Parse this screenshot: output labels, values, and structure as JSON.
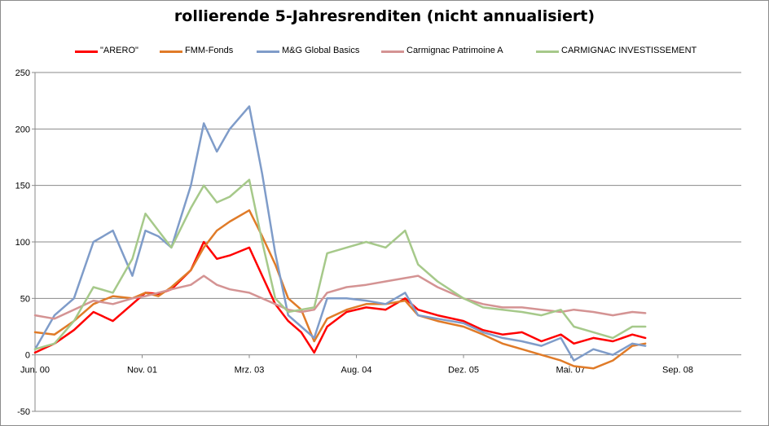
{
  "chart_data": {
    "type": "line",
    "title": "rollierende 5-Jahresrenditen (nicht annualisiert)",
    "xlabel": "",
    "ylabel": "",
    "ylim": [
      -50,
      250
    ],
    "yticks": [
      "-50",
      "0",
      "50",
      "100",
      "150",
      "200",
      "250"
    ],
    "xticks": [
      "Jun. 00",
      "Nov. 01",
      "Mrz. 03",
      "Aug. 04",
      "Dez. 05",
      "Mai. 07",
      "Sep. 08"
    ],
    "grid": "horizontal",
    "legend_position": "top",
    "series": [
      {
        "name": "\"ARERO\"",
        "color": "#ff0000",
        "points": [
          [
            "2000-06",
            2
          ],
          [
            "2000-09",
            10
          ],
          [
            "2000-12",
            22
          ],
          [
            "2001-03",
            38
          ],
          [
            "2001-06",
            30
          ],
          [
            "2001-09",
            45
          ],
          [
            "2001-11",
            55
          ],
          [
            "2002-01",
            54
          ],
          [
            "2002-03",
            58
          ],
          [
            "2002-06",
            75
          ],
          [
            "2002-08",
            100
          ],
          [
            "2002-10",
            85
          ],
          [
            "2002-12",
            88
          ],
          [
            "2003-03",
            95
          ],
          [
            "2003-05",
            70
          ],
          [
            "2003-07",
            45
          ],
          [
            "2003-09",
            30
          ],
          [
            "2003-11",
            20
          ],
          [
            "2004-01",
            2
          ],
          [
            "2004-03",
            25
          ],
          [
            "2004-06",
            38
          ],
          [
            "2004-09",
            42
          ],
          [
            "2004-12",
            40
          ],
          [
            "2005-03",
            50
          ],
          [
            "2005-05",
            40
          ],
          [
            "2005-08",
            35
          ],
          [
            "2005-12",
            30
          ],
          [
            "2006-03",
            22
          ],
          [
            "2006-06",
            18
          ],
          [
            "2006-09",
            20
          ],
          [
            "2006-12",
            12
          ],
          [
            "2007-03",
            18
          ],
          [
            "2007-05",
            10
          ],
          [
            "2007-08",
            15
          ],
          [
            "2007-11",
            12
          ],
          [
            "2008-02",
            18
          ],
          [
            "2008-04",
            15
          ]
        ]
      },
      {
        "name": "FMM-Fonds",
        "color": "#e07b28",
        "points": [
          [
            "2000-06",
            20
          ],
          [
            "2000-09",
            18
          ],
          [
            "2000-12",
            30
          ],
          [
            "2001-03",
            45
          ],
          [
            "2001-06",
            52
          ],
          [
            "2001-09",
            50
          ],
          [
            "2001-11",
            55
          ],
          [
            "2002-01",
            52
          ],
          [
            "2002-03",
            60
          ],
          [
            "2002-06",
            75
          ],
          [
            "2002-08",
            95
          ],
          [
            "2002-10",
            110
          ],
          [
            "2002-12",
            118
          ],
          [
            "2003-03",
            128
          ],
          [
            "2003-05",
            105
          ],
          [
            "2003-07",
            80
          ],
          [
            "2003-09",
            50
          ],
          [
            "2003-11",
            40
          ],
          [
            "2004-01",
            12
          ],
          [
            "2004-03",
            32
          ],
          [
            "2004-06",
            40
          ],
          [
            "2004-09",
            45
          ],
          [
            "2004-12",
            45
          ],
          [
            "2005-03",
            48
          ],
          [
            "2005-05",
            35
          ],
          [
            "2005-08",
            30
          ],
          [
            "2005-12",
            25
          ],
          [
            "2006-03",
            18
          ],
          [
            "2006-06",
            10
          ],
          [
            "2006-09",
            5
          ],
          [
            "2006-12",
            0
          ],
          [
            "2007-03",
            -5
          ],
          [
            "2007-05",
            -10
          ],
          [
            "2007-08",
            -12
          ],
          [
            "2007-11",
            -5
          ],
          [
            "2008-02",
            8
          ],
          [
            "2008-04",
            10
          ]
        ]
      },
      {
        "name": "M&G Global Basics",
        "color": "#7f9cc9",
        "points": [
          [
            "2000-06",
            5
          ],
          [
            "2000-09",
            35
          ],
          [
            "2000-12",
            50
          ],
          [
            "2001-03",
            100
          ],
          [
            "2001-06",
            110
          ],
          [
            "2001-09",
            70
          ],
          [
            "2001-11",
            110
          ],
          [
            "2002-01",
            105
          ],
          [
            "2002-03",
            95
          ],
          [
            "2002-06",
            150
          ],
          [
            "2002-08",
            205
          ],
          [
            "2002-10",
            180
          ],
          [
            "2002-12",
            200
          ],
          [
            "2003-03",
            220
          ],
          [
            "2003-05",
            160
          ],
          [
            "2003-07",
            90
          ],
          [
            "2003-09",
            35
          ],
          [
            "2003-11",
            25
          ],
          [
            "2004-01",
            15
          ],
          [
            "2004-03",
            50
          ],
          [
            "2004-06",
            50
          ],
          [
            "2004-09",
            48
          ],
          [
            "2004-12",
            45
          ],
          [
            "2005-03",
            55
          ],
          [
            "2005-05",
            35
          ],
          [
            "2005-08",
            32
          ],
          [
            "2005-12",
            28
          ],
          [
            "2006-03",
            20
          ],
          [
            "2006-06",
            15
          ],
          [
            "2006-09",
            12
          ],
          [
            "2006-12",
            8
          ],
          [
            "2007-03",
            15
          ],
          [
            "2007-05",
            -5
          ],
          [
            "2007-08",
            5
          ],
          [
            "2007-11",
            0
          ],
          [
            "2008-02",
            10
          ],
          [
            "2008-04",
            8
          ]
        ]
      },
      {
        "name": "Carmignac Patrimoine A",
        "color": "#d49393",
        "points": [
          [
            "2000-06",
            35
          ],
          [
            "2000-09",
            32
          ],
          [
            "2000-12",
            40
          ],
          [
            "2001-03",
            48
          ],
          [
            "2001-06",
            45
          ],
          [
            "2001-09",
            50
          ],
          [
            "2001-11",
            52
          ],
          [
            "2002-01",
            55
          ],
          [
            "2002-03",
            58
          ],
          [
            "2002-06",
            62
          ],
          [
            "2002-08",
            70
          ],
          [
            "2002-10",
            62
          ],
          [
            "2002-12",
            58
          ],
          [
            "2003-03",
            55
          ],
          [
            "2003-05",
            50
          ],
          [
            "2003-07",
            45
          ],
          [
            "2003-09",
            40
          ],
          [
            "2003-11",
            38
          ],
          [
            "2004-01",
            40
          ],
          [
            "2004-03",
            55
          ],
          [
            "2004-06",
            60
          ],
          [
            "2004-09",
            62
          ],
          [
            "2004-12",
            65
          ],
          [
            "2005-03",
            68
          ],
          [
            "2005-05",
            70
          ],
          [
            "2005-08",
            60
          ],
          [
            "2005-12",
            50
          ],
          [
            "2006-03",
            45
          ],
          [
            "2006-06",
            42
          ],
          [
            "2006-09",
            42
          ],
          [
            "2006-12",
            40
          ],
          [
            "2007-03",
            38
          ],
          [
            "2007-05",
            40
          ],
          [
            "2007-08",
            38
          ],
          [
            "2007-11",
            35
          ],
          [
            "2008-02",
            38
          ],
          [
            "2008-04",
            37
          ]
        ]
      },
      {
        "name": "CARMIGNAC INVESTISSEMENT",
        "color": "#a6c98a",
        "points": [
          [
            "2000-06",
            5
          ],
          [
            "2000-09",
            10
          ],
          [
            "2000-12",
            30
          ],
          [
            "2001-03",
            60
          ],
          [
            "2001-06",
            55
          ],
          [
            "2001-09",
            85
          ],
          [
            "2001-11",
            125
          ],
          [
            "2002-01",
            110
          ],
          [
            "2002-03",
            95
          ],
          [
            "2002-06",
            130
          ],
          [
            "2002-08",
            150
          ],
          [
            "2002-10",
            135
          ],
          [
            "2002-12",
            140
          ],
          [
            "2003-03",
            155
          ],
          [
            "2003-05",
            100
          ],
          [
            "2003-07",
            50
          ],
          [
            "2003-09",
            38
          ],
          [
            "2003-11",
            40
          ],
          [
            "2004-01",
            42
          ],
          [
            "2004-03",
            90
          ],
          [
            "2004-06",
            95
          ],
          [
            "2004-09",
            100
          ],
          [
            "2004-12",
            95
          ],
          [
            "2005-03",
            110
          ],
          [
            "2005-05",
            80
          ],
          [
            "2005-08",
            65
          ],
          [
            "2005-12",
            50
          ],
          [
            "2006-03",
            42
          ],
          [
            "2006-06",
            40
          ],
          [
            "2006-09",
            38
          ],
          [
            "2006-12",
            35
          ],
          [
            "2007-03",
            40
          ],
          [
            "2007-05",
            25
          ],
          [
            "2007-08",
            20
          ],
          [
            "2007-11",
            15
          ],
          [
            "2008-02",
            25
          ],
          [
            "2008-04",
            25
          ]
        ]
      }
    ]
  }
}
